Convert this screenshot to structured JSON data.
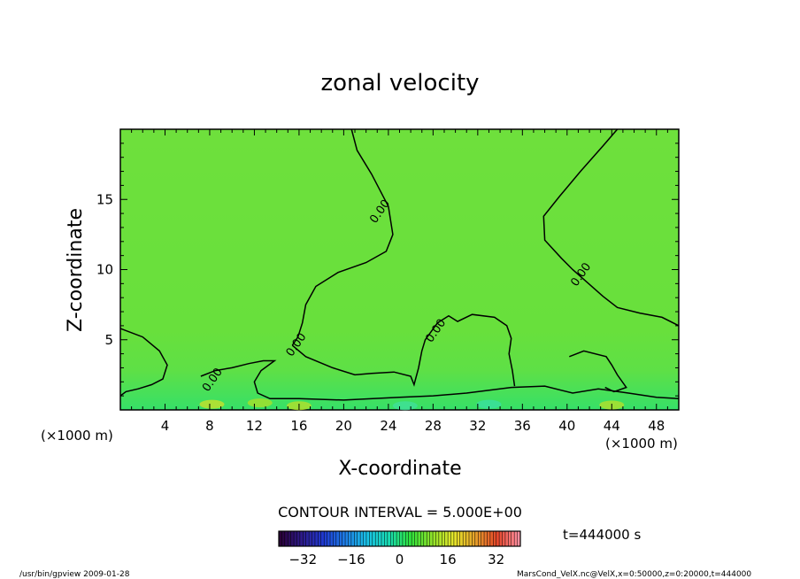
{
  "chart_data": {
    "type": "contour",
    "title": "zonal velocity",
    "xlabel": "X-coordinate",
    "ylabel": "Z-coordinate",
    "x_unit_label": "(×1000 m)",
    "y_unit_label": "(×1000 m)",
    "xlim": [
      0,
      50
    ],
    "ylim": [
      0,
      20
    ],
    "x_ticks": [
      4,
      8,
      12,
      16,
      20,
      24,
      28,
      32,
      36,
      40,
      44,
      48
    ],
    "y_ticks": [
      5,
      10,
      15
    ],
    "contour_interval_text": "CONTOUR INTERVAL = 5.000E+00",
    "time_text": "t=444000 s",
    "colorbar": {
      "range": [
        -40,
        40
      ],
      "ticks": [
        -32,
        -16,
        0,
        16,
        32
      ],
      "colors": [
        "#2a0038",
        "#2d1a8a",
        "#1f3ad2",
        "#1e7ee6",
        "#19c2e6",
        "#19dcb4",
        "#2fe33c",
        "#8fe32a",
        "#e6e62a",
        "#e6a02a",
        "#e6462a",
        "#ff8fa0"
      ]
    },
    "contour_labels": [
      "0.00",
      "0.00",
      "0.00",
      "0.00",
      "0.00"
    ],
    "contour_lines": [
      [
        [
          20.7,
          20
        ],
        [
          21.2,
          18.5
        ],
        [
          22.5,
          16.8
        ],
        [
          24,
          14.5
        ],
        [
          24.4,
          12.5
        ],
        [
          23.8,
          11.3
        ],
        [
          22,
          10.5
        ],
        [
          19.5,
          9.8
        ],
        [
          17.5,
          8.8
        ],
        [
          16.6,
          7.5
        ],
        [
          16.3,
          6.2
        ],
        [
          15.9,
          5.2
        ],
        [
          15.4,
          4.6
        ]
      ],
      [
        [
          44.5,
          20
        ],
        [
          43.2,
          18.8
        ],
        [
          41.2,
          17
        ],
        [
          39.3,
          15.2
        ],
        [
          37.9,
          13.8
        ],
        [
          38,
          12.1
        ],
        [
          39.5,
          10.8
        ],
        [
          40.5,
          10
        ],
        [
          41.5,
          9.3
        ],
        [
          43.2,
          8.1
        ],
        [
          44.5,
          7.3
        ],
        [
          46.5,
          6.9
        ],
        [
          48.5,
          6.6
        ],
        [
          50,
          6
        ]
      ],
      [
        [
          0,
          5.8
        ],
        [
          2,
          5.2
        ],
        [
          3.5,
          4.2
        ],
        [
          4.2,
          3.2
        ],
        [
          3.8,
          2.2
        ],
        [
          2.8,
          1.8
        ],
        [
          1.6,
          1.5
        ],
        [
          0.5,
          1.3
        ],
        [
          0,
          1.0
        ]
      ],
      [
        [
          7.2,
          2.4
        ],
        [
          8.5,
          2.8
        ],
        [
          10,
          3.0
        ],
        [
          11.5,
          3.3
        ],
        [
          12.8,
          3.5
        ],
        [
          13.8,
          3.5
        ],
        [
          12.6,
          2.8
        ],
        [
          12,
          2.0
        ],
        [
          12.3,
          1.2
        ],
        [
          13.4,
          0.8
        ],
        [
          16,
          0.8
        ],
        [
          20,
          0.7
        ],
        [
          25,
          0.9
        ],
        [
          28,
          1.0
        ],
        [
          31,
          1.2
        ],
        [
          35,
          1.6
        ],
        [
          38,
          1.7
        ],
        [
          40.5,
          1.2
        ],
        [
          42.8,
          1.5
        ],
        [
          45.5,
          1.2
        ],
        [
          48,
          0.9
        ],
        [
          50,
          0.8
        ]
      ],
      [
        [
          15.4,
          4.6
        ],
        [
          16.6,
          3.8
        ],
        [
          19,
          3.0
        ],
        [
          21,
          2.5
        ],
        [
          22.5,
          2.6
        ],
        [
          24.5,
          2.7
        ],
        [
          26,
          2.4
        ],
        [
          26.3,
          1.8
        ],
        [
          26.7,
          3.0
        ],
        [
          27,
          4.2
        ],
        [
          27.3,
          5.0
        ],
        [
          28.4,
          6.2
        ],
        [
          29.4,
          6.7
        ],
        [
          30.2,
          6.3
        ],
        [
          31.5,
          6.8
        ],
        [
          33.5,
          6.6
        ],
        [
          34.6,
          6.0
        ],
        [
          35,
          5.1
        ],
        [
          34.8,
          4.0
        ],
        [
          35.1,
          2.8
        ],
        [
          35.3,
          1.7
        ]
      ],
      [
        [
          40.2,
          3.8
        ],
        [
          41.5,
          4.2
        ],
        [
          43.5,
          3.8
        ],
        [
          44,
          3.2
        ],
        [
          44.5,
          2.5
        ],
        [
          45.3,
          1.6
        ],
        [
          44.2,
          1.3
        ],
        [
          43.4,
          1.6
        ]
      ]
    ],
    "label_positions_data": [
      [
        8.5,
        2.0
      ],
      [
        16,
        4.5
      ],
      [
        28.5,
        5.5
      ],
      [
        41.5,
        9.5
      ],
      [
        23.5,
        14
      ]
    ]
  },
  "footer": {
    "left": "/usr/bin/gpview  2009-01-28",
    "right": "MarsCond_VelX.nc@VelX,x=0:50000,z=0:20000,t=444000"
  }
}
